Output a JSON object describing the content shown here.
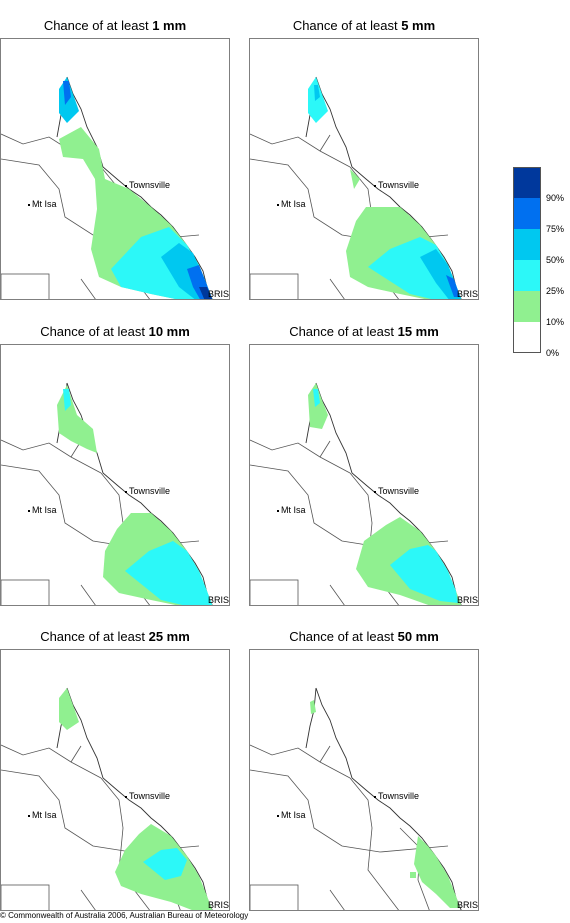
{
  "panels": [
    {
      "title_prefix": "Chance of at least ",
      "threshold": "1 mm",
      "labels": {
        "townsville": "Townsville",
        "mt_isa": "Mt Isa",
        "bris": "BRIS"
      }
    },
    {
      "title_prefix": "Chance of at least ",
      "threshold": "5 mm",
      "labels": {
        "townsville": "Townsville",
        "mt_isa": "Mt Isa",
        "bris": "BRIS"
      }
    },
    {
      "title_prefix": "Chance of at least ",
      "threshold": "10 mm",
      "labels": {
        "townsville": "Townsville",
        "mt_isa": "Mt Isa",
        "bris": "BRIS"
      }
    },
    {
      "title_prefix": "Chance of at least ",
      "threshold": "15 mm",
      "labels": {
        "townsville": "Townsville",
        "mt_isa": "Mt Isa",
        "bris": "BRIS"
      }
    },
    {
      "title_prefix": "Chance of at least ",
      "threshold": "25 mm",
      "labels": {
        "townsville": "Townsville",
        "mt_isa": "Mt Isa",
        "bris": "BRIS"
      }
    },
    {
      "title_prefix": "Chance of at least ",
      "threshold": "50 mm",
      "labels": {
        "townsville": "Townsville",
        "mt_isa": "Mt Isa",
        "bris": "BRIS"
      }
    }
  ],
  "legend": {
    "bands": [
      {
        "color": "#00389c",
        "label": "90%"
      },
      {
        "color": "#0070f0",
        "label": "75%"
      },
      {
        "color": "#00c8f0",
        "label": "50%"
      },
      {
        "color": "#2cf8f8",
        "label": "25%"
      },
      {
        "color": "#90f090",
        "label": "10%"
      },
      {
        "color": "#ffffff",
        "label": "0%"
      }
    ]
  },
  "footer": "© Commonwealth of Australia 2006, Australian Bureau of Meteorology"
}
